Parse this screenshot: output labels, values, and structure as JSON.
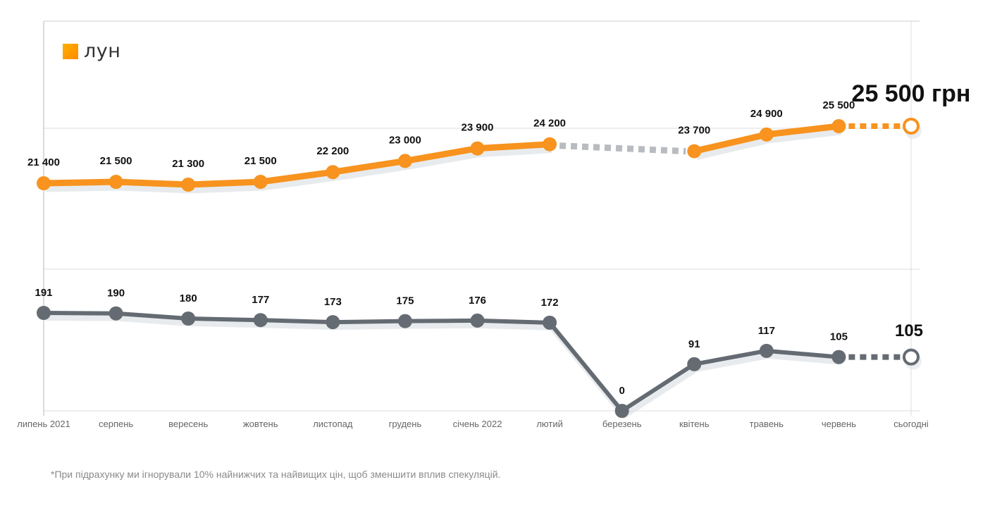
{
  "logo": {
    "text": "лун"
  },
  "footnote": "*При підрахунку ми ігнорували 10% найнижчих та найвищих цін, щоб зменшити вплив спекуляцій.",
  "colors": {
    "price": "#f7931e",
    "count": "#656b72",
    "gap": "#b8bcc0",
    "grid": "#dedede"
  },
  "chart_data": {
    "type": "line",
    "categories": [
      "липень 2021",
      "серпень",
      "вересень",
      "жовтень",
      "листопад",
      "грудень",
      "січень 2022",
      "лютий",
      "березень",
      "квітень",
      "травень",
      "червень",
      "сьогодні"
    ],
    "series": [
      {
        "name": "price",
        "unit": "грн",
        "values": [
          21400,
          21500,
          21300,
          21500,
          22200,
          23000,
          23900,
          24200,
          null,
          23700,
          24900,
          25500,
          25500
        ],
        "labels": [
          "21 400",
          "21 500",
          "21 300",
          "21 500",
          "22 200",
          "23 000",
          "23 900",
          "24 200",
          "",
          "23 700",
          "24 900",
          "25 500",
          ""
        ],
        "current_label": "25 500 грн",
        "gap": {
          "from": 7,
          "to": 9
        }
      },
      {
        "name": "listings",
        "values": [
          191,
          190,
          180,
          177,
          173,
          175,
          176,
          172,
          0,
          91,
          117,
          105,
          105
        ],
        "labels": [
          "191",
          "190",
          "180",
          "177",
          "173",
          "175",
          "176",
          "172",
          "0",
          "91",
          "117",
          "105",
          ""
        ],
        "current_label": "105"
      }
    ],
    "grid": true,
    "legend": "none"
  }
}
